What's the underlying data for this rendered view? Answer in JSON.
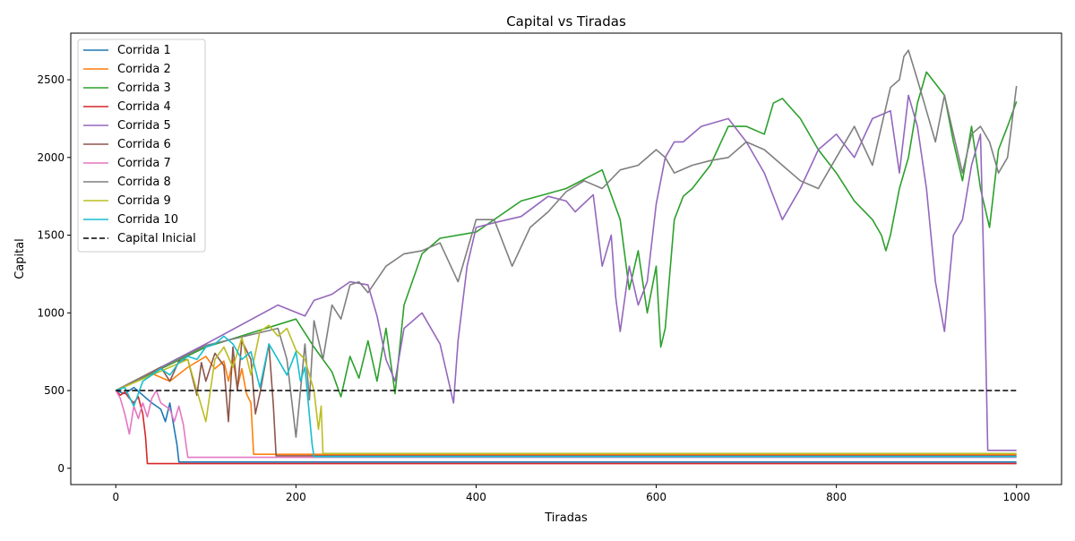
{
  "chart_data": {
    "type": "line",
    "title": "Capital vs Tiradas",
    "xlabel": "Tiradas",
    "ylabel": "Capital",
    "xlim": [
      -50,
      1050
    ],
    "ylim": [
      -105,
      2800
    ],
    "xticks": [
      0,
      200,
      400,
      600,
      800,
      1000
    ],
    "yticks": [
      0,
      500,
      1000,
      1500,
      2000,
      2500
    ],
    "grid": false,
    "legend_position": "top-left",
    "series": [
      {
        "name": "Corrida 1",
        "color": "#1f77b4",
        "x": [
          0,
          10,
          20,
          30,
          40,
          50,
          55,
          60,
          65,
          68,
          70,
          1000
        ],
        "y": [
          500,
          480,
          520,
          470,
          420,
          380,
          300,
          420,
          250,
          150,
          40,
          40
        ]
      },
      {
        "name": "Corrida 2",
        "color": "#ff7f0e",
        "x": [
          0,
          20,
          40,
          60,
          80,
          100,
          110,
          120,
          125,
          130,
          135,
          140,
          145,
          150,
          153,
          1000
        ],
        "y": [
          500,
          560,
          610,
          560,
          650,
          720,
          640,
          690,
          560,
          700,
          520,
          640,
          480,
          420,
          90,
          90
        ]
      },
      {
        "name": "Corrida 3",
        "color": "#2ca02c",
        "x": [
          0,
          100,
          200,
          220,
          240,
          250,
          260,
          270,
          280,
          290,
          300,
          310,
          320,
          340,
          360,
          400,
          450,
          500,
          540,
          560,
          570,
          580,
          590,
          600,
          605,
          610,
          620,
          630,
          640,
          660,
          680,
          700,
          720,
          730,
          740,
          760,
          780,
          800,
          820,
          840,
          850,
          855,
          860,
          870,
          880,
          890,
          900,
          920,
          930,
          940,
          950,
          960,
          970,
          980,
          990,
          1000
        ],
        "y": [
          500,
          780,
          960,
          780,
          620,
          460,
          720,
          580,
          820,
          560,
          900,
          480,
          1050,
          1380,
          1480,
          1520,
          1720,
          1800,
          1920,
          1600,
          1150,
          1400,
          1000,
          1300,
          780,
          900,
          1600,
          1750,
          1800,
          1950,
          2200,
          2200,
          2150,
          2350,
          2380,
          2250,
          2050,
          1900,
          1720,
          1600,
          1500,
          1400,
          1500,
          1800,
          2000,
          2350,
          2550,
          2400,
          2100,
          1850,
          2200,
          1800,
          1550,
          2050,
          2200,
          2360
        ]
      },
      {
        "name": "Corrida 4",
        "color": "#d62728",
        "x": [
          0,
          5,
          10,
          15,
          20,
          25,
          30,
          33,
          35,
          1000
        ],
        "y": [
          500,
          470,
          490,
          450,
          420,
          460,
          350,
          200,
          30,
          30
        ]
      },
      {
        "name": "Corrida 5",
        "color": "#9467bd",
        "x": [
          0,
          100,
          180,
          210,
          220,
          240,
          260,
          280,
          290,
          300,
          310,
          320,
          340,
          360,
          375,
          380,
          390,
          400,
          420,
          450,
          480,
          500,
          510,
          530,
          540,
          550,
          555,
          560,
          570,
          580,
          590,
          600,
          610,
          620,
          630,
          650,
          680,
          700,
          720,
          740,
          760,
          780,
          800,
          820,
          840,
          860,
          870,
          880,
          890,
          900,
          910,
          920,
          930,
          940,
          950,
          960,
          965,
          968,
          1000
        ],
        "y": [
          500,
          800,
          1050,
          980,
          1080,
          1120,
          1200,
          1180,
          980,
          700,
          560,
          900,
          1000,
          800,
          420,
          820,
          1300,
          1550,
          1580,
          1620,
          1750,
          1720,
          1650,
          1760,
          1300,
          1500,
          1100,
          880,
          1300,
          1050,
          1200,
          1700,
          2000,
          2100,
          2100,
          2200,
          2250,
          2100,
          1900,
          1600,
          1800,
          2050,
          2150,
          2000,
          2250,
          2300,
          1900,
          2400,
          2200,
          1800,
          1200,
          880,
          1500,
          1600,
          1950,
          2150,
          1000,
          115,
          115
        ]
      },
      {
        "name": "Corrida 6",
        "color": "#8c564b",
        "x": [
          0,
          20,
          40,
          50,
          60,
          70,
          80,
          90,
          95,
          100,
          110,
          120,
          125,
          130,
          135,
          140,
          150,
          155,
          160,
          170,
          175,
          178,
          1000
        ],
        "y": [
          500,
          560,
          620,
          650,
          560,
          690,
          700,
          470,
          680,
          560,
          740,
          660,
          300,
          780,
          500,
          820,
          700,
          350,
          480,
          800,
          400,
          80,
          80
        ]
      },
      {
        "name": "Corrida 7",
        "color": "#e377c2",
        "x": [
          0,
          5,
          10,
          15,
          20,
          25,
          30,
          35,
          40,
          45,
          50,
          60,
          65,
          70,
          75,
          78,
          80,
          1000
        ],
        "y": [
          500,
          450,
          350,
          220,
          400,
          320,
          420,
          330,
          450,
          500,
          420,
          380,
          300,
          400,
          280,
          150,
          70,
          70
        ]
      },
      {
        "name": "Corrida 8",
        "color": "#7f7f7f",
        "x": [
          0,
          100,
          180,
          190,
          200,
          210,
          215,
          220,
          230,
          240,
          250,
          260,
          270,
          280,
          300,
          320,
          340,
          360,
          380,
          400,
          420,
          440,
          460,
          480,
          500,
          520,
          540,
          560,
          580,
          600,
          610,
          620,
          640,
          660,
          680,
          700,
          720,
          740,
          760,
          780,
          800,
          820,
          840,
          860,
          870,
          875,
          880,
          890,
          900,
          910,
          920,
          930,
          940,
          950,
          960,
          970,
          980,
          990,
          1000
        ],
        "y": [
          500,
          790,
          900,
          700,
          200,
          800,
          440,
          950,
          700,
          1050,
          960,
          1180,
          1200,
          1130,
          1300,
          1380,
          1400,
          1450,
          1200,
          1600,
          1600,
          1300,
          1550,
          1650,
          1780,
          1850,
          1800,
          1920,
          1950,
          2050,
          2000,
          1900,
          1950,
          1980,
          2000,
          2100,
          2050,
          1950,
          1850,
          1800,
          2000,
          2200,
          1950,
          2450,
          2500,
          2650,
          2690,
          2500,
          2300,
          2100,
          2400,
          2150,
          1900,
          2150,
          2200,
          2100,
          1900,
          2000,
          2460
        ]
      },
      {
        "name": "Corrida 9",
        "color": "#bcbd22",
        "x": [
          0,
          20,
          40,
          60,
          80,
          100,
          110,
          120,
          130,
          140,
          150,
          160,
          170,
          180,
          190,
          200,
          210,
          220,
          225,
          228,
          230,
          1000
        ],
        "y": [
          500,
          550,
          600,
          650,
          700,
          300,
          700,
          780,
          650,
          840,
          600,
          880,
          920,
          850,
          900,
          760,
          700,
          500,
          250,
          400,
          95,
          95
        ]
      },
      {
        "name": "Corrida 10",
        "color": "#17becf",
        "x": [
          0,
          10,
          20,
          30,
          40,
          50,
          60,
          70,
          80,
          90,
          100,
          110,
          120,
          130,
          140,
          150,
          160,
          170,
          180,
          190,
          200,
          205,
          210,
          215,
          218,
          220,
          1000
        ],
        "y": [
          500,
          520,
          400,
          560,
          600,
          640,
          600,
          680,
          720,
          700,
          780,
          800,
          850,
          800,
          700,
          750,
          520,
          800,
          700,
          600,
          750,
          560,
          650,
          340,
          150,
          75,
          75
        ]
      },
      {
        "name": "Capital Inicial",
        "color": "#000000",
        "dashed": true,
        "x": [
          0,
          1000
        ],
        "y": [
          500,
          500
        ]
      }
    ]
  }
}
